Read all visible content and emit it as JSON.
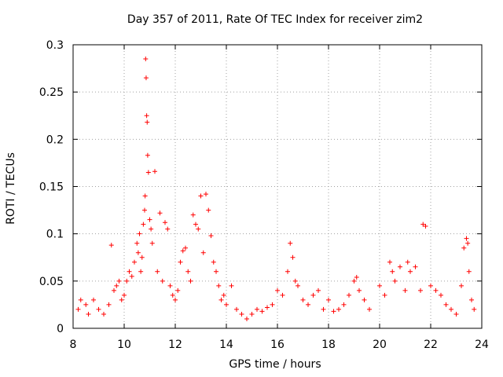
{
  "chart_data": {
    "type": "scatter",
    "title": "Day 357 of 2011, Rate Of TEC Index for receiver zim2",
    "xlabel": "GPS time / hours",
    "ylabel": "ROTI / TECUs",
    "xlim": [
      8,
      24
    ],
    "ylim": [
      0,
      0.3
    ],
    "x_ticks": [
      "8",
      "10",
      "12",
      "14",
      "16",
      "18",
      "20",
      "22",
      "24"
    ],
    "y_ticks": [
      "0",
      "0.05",
      "0.1",
      "0.15",
      "0.2",
      "0.25",
      "0.3"
    ],
    "grid": true,
    "marker": "+",
    "color": "#ff0000",
    "series": [
      {
        "name": "ROTI",
        "x": [
          8.2,
          8.3,
          8.5,
          8.6,
          8.8,
          9.0,
          9.2,
          9.4,
          9.5,
          9.6,
          9.7,
          9.8,
          9.9,
          10.0,
          10.1,
          10.2,
          10.3,
          10.4,
          10.5,
          10.55,
          10.6,
          10.65,
          10.7,
          10.75,
          10.8,
          10.82,
          10.84,
          10.86,
          10.88,
          10.9,
          10.92,
          10.95,
          11.0,
          11.05,
          11.1,
          11.2,
          11.3,
          11.4,
          11.5,
          11.6,
          11.7,
          11.8,
          11.9,
          12.0,
          12.1,
          12.2,
          12.3,
          12.4,
          12.5,
          12.6,
          12.7,
          12.8,
          12.9,
          13.0,
          13.1,
          13.2,
          13.3,
          13.4,
          13.5,
          13.6,
          13.7,
          13.8,
          13.9,
          14.0,
          14.2,
          14.4,
          14.6,
          14.8,
          15.0,
          15.2,
          15.4,
          15.6,
          15.8,
          16.0,
          16.2,
          16.4,
          16.5,
          16.6,
          16.7,
          16.8,
          17.0,
          17.2,
          17.4,
          17.6,
          17.8,
          18.0,
          18.2,
          18.4,
          18.6,
          18.8,
          19.0,
          19.1,
          19.2,
          19.4,
          19.6,
          20.0,
          20.2,
          20.4,
          20.5,
          20.6,
          20.8,
          21.0,
          21.1,
          21.2,
          21.4,
          21.6,
          21.7,
          21.8,
          22.0,
          22.2,
          22.4,
          22.6,
          22.8,
          23.0,
          23.2,
          23.3,
          23.4,
          23.45,
          23.5,
          23.6,
          23.7
        ],
        "y": [
          0.02,
          0.03,
          0.025,
          0.015,
          0.03,
          0.02,
          0.015,
          0.025,
          0.088,
          0.04,
          0.045,
          0.05,
          0.03,
          0.035,
          0.05,
          0.06,
          0.055,
          0.07,
          0.09,
          0.08,
          0.1,
          0.06,
          0.075,
          0.11,
          0.125,
          0.14,
          0.285,
          0.265,
          0.225,
          0.218,
          0.183,
          0.165,
          0.115,
          0.105,
          0.09,
          0.166,
          0.06,
          0.122,
          0.05,
          0.112,
          0.105,
          0.045,
          0.035,
          0.03,
          0.04,
          0.07,
          0.082,
          0.085,
          0.06,
          0.05,
          0.12,
          0.11,
          0.105,
          0.14,
          0.08,
          0.142,
          0.125,
          0.098,
          0.07,
          0.06,
          0.045,
          0.03,
          0.035,
          0.025,
          0.045,
          0.02,
          0.015,
          0.01,
          0.015,
          0.02,
          0.018,
          0.022,
          0.025,
          0.04,
          0.035,
          0.06,
          0.09,
          0.075,
          0.05,
          0.045,
          0.03,
          0.025,
          0.035,
          0.04,
          0.02,
          0.03,
          0.018,
          0.02,
          0.025,
          0.035,
          0.05,
          0.054,
          0.04,
          0.03,
          0.02,
          0.045,
          0.035,
          0.07,
          0.06,
          0.05,
          0.065,
          0.04,
          0.07,
          0.06,
          0.065,
          0.04,
          0.11,
          0.108,
          0.045,
          0.04,
          0.035,
          0.025,
          0.02,
          0.015,
          0.045,
          0.085,
          0.095,
          0.09,
          0.06,
          0.03,
          0.02
        ]
      }
    ]
  }
}
